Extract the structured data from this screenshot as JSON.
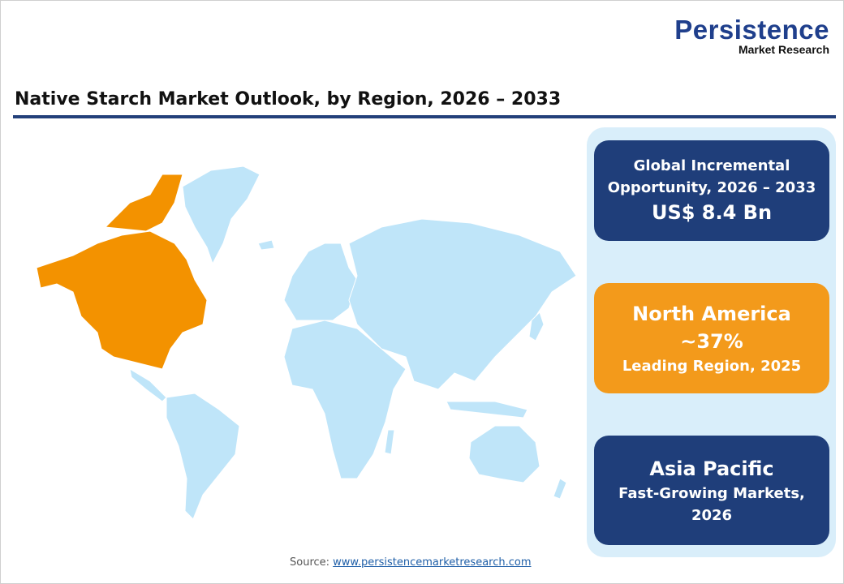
{
  "logo": {
    "main": "Persistence",
    "sub": "Market Research"
  },
  "title": "Native Starch Market Outlook, by Region, 2026 – 2033",
  "map": {
    "highlighted_region": "North America",
    "highlight_color": "#f39200",
    "base_color": "#bfe5f9"
  },
  "cards": [
    {
      "line1": "Global Incremental",
      "line2": "Opportunity, 2026 – 2033",
      "value": "US$ 8.4 Bn",
      "color": "#1f3e7a"
    },
    {
      "region": "North America",
      "value": "~37%",
      "caption": "Leading Region, 2025",
      "color": "#f39a1b"
    },
    {
      "region": "Asia Pacific",
      "caption1": "Fast-Growing Markets,",
      "caption2": "2026",
      "color": "#1f3e7a"
    }
  ],
  "source": {
    "label": "Source:",
    "link": "www.persistencemarketresearch.com"
  }
}
